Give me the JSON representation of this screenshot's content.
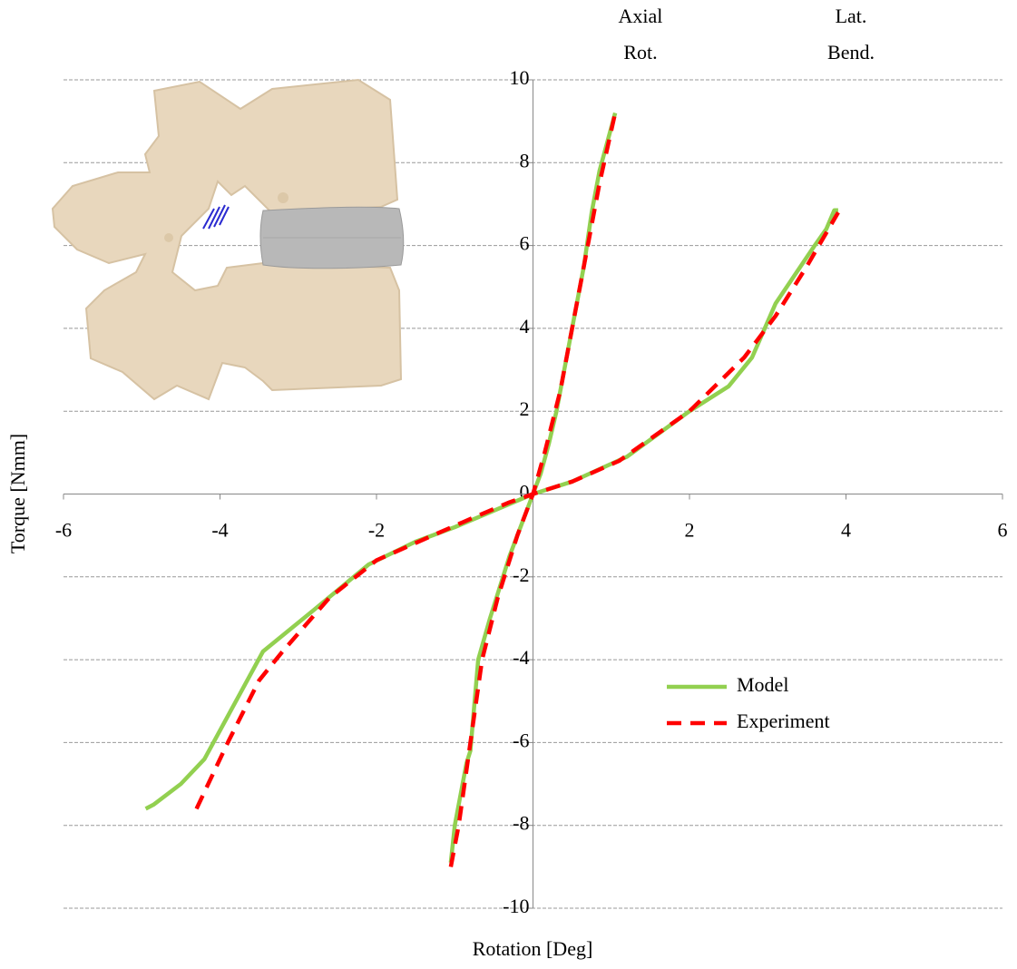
{
  "chart_data": {
    "type": "line",
    "xlabel": "Rotation [Deg]",
    "ylabel": "Torque [Nmm]",
    "annotations": [
      [
        "Axial",
        "Rot."
      ],
      [
        "Lat.",
        "Bend."
      ]
    ],
    "xlim": [
      -6,
      6
    ],
    "xticks": [
      -6,
      -4,
      -2,
      2,
      4,
      6
    ],
    "ylim": [
      -10,
      10
    ],
    "yticks": [
      -10,
      -8,
      -6,
      -4,
      -2,
      0,
      2,
      4,
      6,
      8,
      10
    ],
    "grid": true,
    "legend_position": "lower right",
    "series": [
      {
        "name": "Model",
        "color": "#92d050",
        "line_style": "solid",
        "x": [
          -1.05,
          -1.0,
          -0.85,
          -0.8,
          -0.7,
          -0.55,
          -0.3,
          -0.1,
          0,
          0.1,
          0.2,
          0.3,
          0.4,
          0.5,
          0.65,
          0.75,
          0.85,
          1.05,
          null,
          -4.95,
          -4.85,
          -4.5,
          -4.2,
          -3.45,
          -2.8,
          -2.1,
          -1.5,
          -1.0,
          -0.5,
          0,
          0.5,
          1.2,
          2.0,
          2.5,
          2.8,
          3.1,
          3.6,
          3.75,
          3.85,
          3.9
        ],
        "values": [
          -8.9,
          -8,
          -6.5,
          -6.2,
          -4,
          -3,
          -1.5,
          -0.5,
          0,
          0.5,
          1.2,
          2,
          3,
          4,
          5.5,
          6.8,
          7.8,
          9.2,
          null,
          -7.6,
          -7.5,
          -7,
          -6.4,
          -3.8,
          -2.8,
          -1.7,
          -1.15,
          -0.8,
          -0.4,
          0,
          0.3,
          0.9,
          2,
          2.6,
          3.3,
          4.6,
          6,
          6.4,
          6.85,
          6.85
        ]
      },
      {
        "name": "Experiment",
        "color": "#ff0000",
        "line_style": "dashed",
        "x": [
          -1.05,
          -0.95,
          -0.8,
          -0.65,
          -0.45,
          -0.2,
          0,
          0.15,
          0.35,
          0.5,
          0.7,
          0.85,
          1.05,
          null,
          -4.3,
          -3.9,
          -3.5,
          -3.2,
          -2.6,
          -2.0,
          -1.4,
          -0.8,
          -0.3,
          0,
          0.5,
          1.1,
          2.0,
          2.7,
          3.1,
          3.5,
          3.9
        ],
        "values": [
          -9,
          -8,
          -6,
          -4,
          -2.5,
          -1,
          0,
          1,
          2.5,
          4,
          6,
          7.5,
          9.2,
          null,
          -7.6,
          -6,
          -4.5,
          -3.8,
          -2.5,
          -1.6,
          -1.1,
          -0.6,
          -0.2,
          0,
          0.3,
          0.8,
          2,
          3.3,
          4.3,
          5.5,
          6.8
        ]
      }
    ]
  }
}
